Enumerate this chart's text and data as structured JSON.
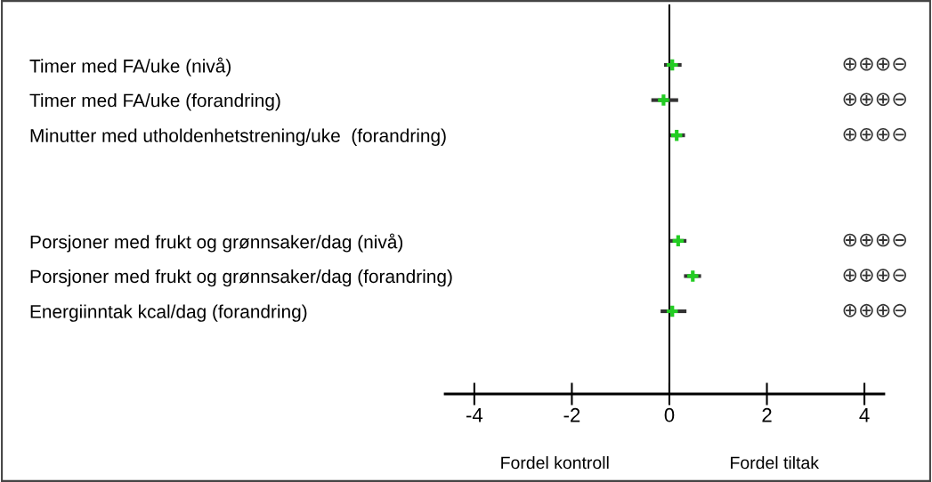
{
  "chart_data": {
    "type": "scatter",
    "orientation": "horizontal",
    "categories": [
      "Timer med FA/uke (nivå)",
      "Timer med FA/uke (forandring)",
      "Minutter med utholdenhetstrening/uke  (forandring)",
      null,
      null,
      "Porsjoner med frukt og grønnsaker/dag (nivå)",
      "Porsjoner med frukt og grønnsaker/dag (forandring)",
      "Energiinntak kcal/dag (forandring)"
    ],
    "series": [
      {
        "color": "#22cc22",
        "values": [
          0.06,
          -0.12,
          0.15,
          null,
          null,
          0.18,
          0.48,
          0.06
        ],
        "errors": [
          [
            -0.11,
            0.25
          ],
          [
            -0.37,
            0.18
          ],
          [
            0.02,
            0.32
          ],
          null,
          null,
          [
            0.02,
            0.35
          ],
          [
            0.3,
            0.65
          ],
          [
            -0.18,
            0.35
          ]
        ]
      }
    ],
    "marker": "cross",
    "xlim": [
      -4.6,
      4.4
    ],
    "xticks": [
      -4,
      -2,
      0,
      2,
      4
    ],
    "ref_lines": [
      {
        "axis": "x",
        "value": 0,
        "color": "#000000"
      }
    ],
    "grid": false,
    "legend": false,
    "annotations": [
      "⊕⊕⊕⊖",
      "⊕⊕⊕⊖",
      "⊕⊕⊕⊖",
      "⊕⊕⊕⊖",
      "⊕⊕⊕⊖",
      "⊕⊕⊕⊖",
      "Fordel kontroll",
      "Fordel tiltak"
    ]
  }
}
